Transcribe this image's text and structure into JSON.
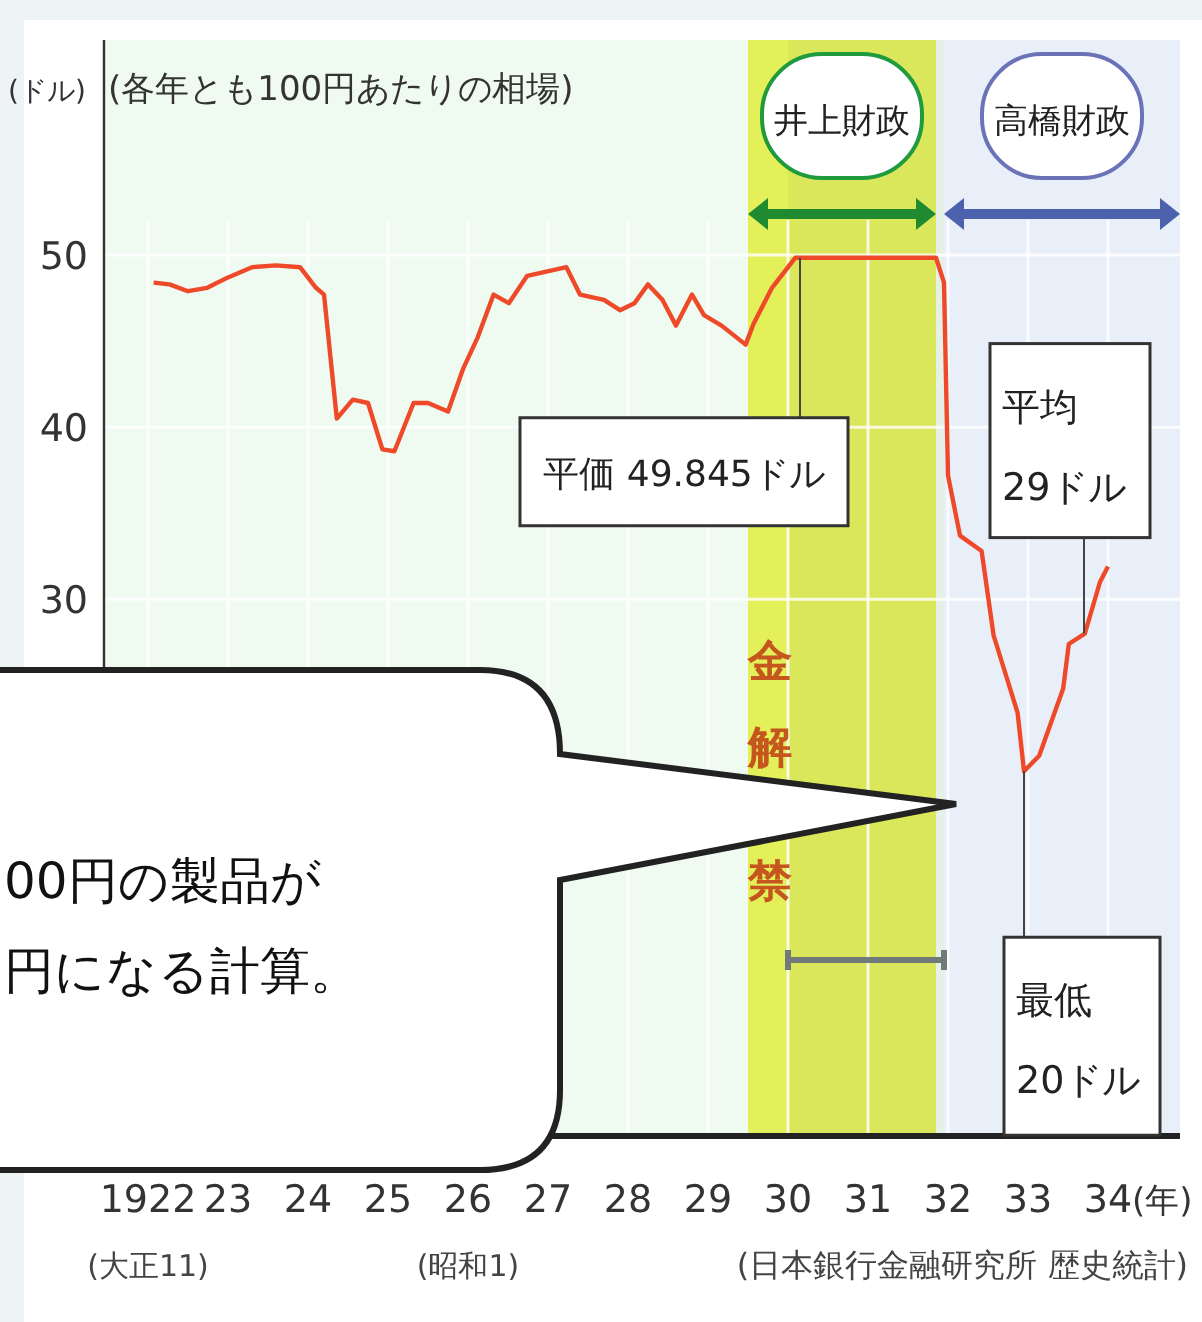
{
  "chart_data": {
    "type": "line",
    "subtitle": "(各年とも100円あたりの相場)",
    "ylabel": "(ドル)",
    "x": [
      1922.07,
      1922.27,
      1922.5,
      1922.74,
      1923.0,
      1923.3,
      1923.6,
      1923.9,
      1924.1,
      1924.2,
      1924.36,
      1924.56,
      1924.75,
      1924.93,
      1925.08,
      1925.32,
      1925.5,
      1925.75,
      1925.94,
      1926.12,
      1926.32,
      1926.51,
      1926.74,
      1927.23,
      1927.4,
      1927.7,
      1927.9,
      1928.08,
      1928.25,
      1928.43,
      1928.6,
      1928.8,
      1928.95,
      1929.17,
      1929.47,
      1929.57,
      1929.8,
      1930.09,
      1931.85,
      1931.95,
      1932.0,
      1932.15,
      1932.42,
      1932.57,
      1932.87,
      1932.95,
      1933.14,
      1933.44,
      1933.51,
      1933.71,
      1933.9,
      1934.0
    ],
    "series": [
      {
        "color": "#ee4a2a",
        "values": [
          48.4,
          48.3,
          47.9,
          48.1,
          48.7,
          49.3,
          49.4,
          49.3,
          48.1,
          47.7,
          40.5,
          41.6,
          41.4,
          38.7,
          38.6,
          41.4,
          41.4,
          40.9,
          43.4,
          45.2,
          47.7,
          47.2,
          48.8,
          49.3,
          47.7,
          47.4,
          46.8,
          47.2,
          48.3,
          47.4,
          45.9,
          47.7,
          46.5,
          45.9,
          44.8,
          46.0,
          48.1,
          49.845,
          49.845,
          48.4,
          37.2,
          33.7,
          32.8,
          27.9,
          23.4,
          20.0,
          20.9,
          24.8,
          27.4,
          28.0,
          31.0,
          31.9
        ]
      }
    ],
    "xlim": [
      1921.45,
      1934.9
    ],
    "xlabel": "(年)",
    "xticks": [
      {
        "value": 1922,
        "label": "1922\n(大正11)"
      },
      {
        "value": 1923,
        "label": "23"
      },
      {
        "value": 1924,
        "label": "24"
      },
      {
        "value": 1925,
        "label": "25"
      },
      {
        "value": 1926,
        "label": "26\n(昭和1)"
      },
      {
        "value": 1927,
        "label": "27"
      },
      {
        "value": 1928,
        "label": "28"
      },
      {
        "value": 1929,
        "label": "29"
      },
      {
        "value": 1930,
        "label": "30"
      },
      {
        "value": 1931,
        "label": "31"
      },
      {
        "value": 1932,
        "label": "32"
      },
      {
        "value": 1933,
        "label": "33"
      },
      {
        "value": 1934,
        "label": "34"
      }
    ],
    "ylim": [
      -1.2,
      62.5
    ],
    "yticks": [
      30,
      40,
      50
    ],
    "grid": true,
    "bands": [
      {
        "axis": "x",
        "from": 1929.5,
        "to": 1931.85,
        "label": "井上財政",
        "color": "#e4f05a"
      },
      {
        "axis": "x",
        "from": 1931.95,
        "to": 1934.9,
        "label": "高橋財政",
        "color": "#e8eff9"
      },
      {
        "axis": "x",
        "from": 1930.0,
        "to": 1931.95,
        "label": "金解禁",
        "color": "#707a78"
      }
    ],
    "annotations": [
      {
        "text": "平価 49.845ドル",
        "x": 1930.15,
        "y": 49.845
      },
      {
        "text": "平均\n29ドル",
        "x": 1933.7,
        "y": 28.0
      },
      {
        "text": "最低\n20ドル",
        "x": 1932.95,
        "y": 20.0
      },
      "(日本銀行金融研究所 歴史統計)",
      "00円の製品が",
      "円になる計算。"
    ]
  }
}
